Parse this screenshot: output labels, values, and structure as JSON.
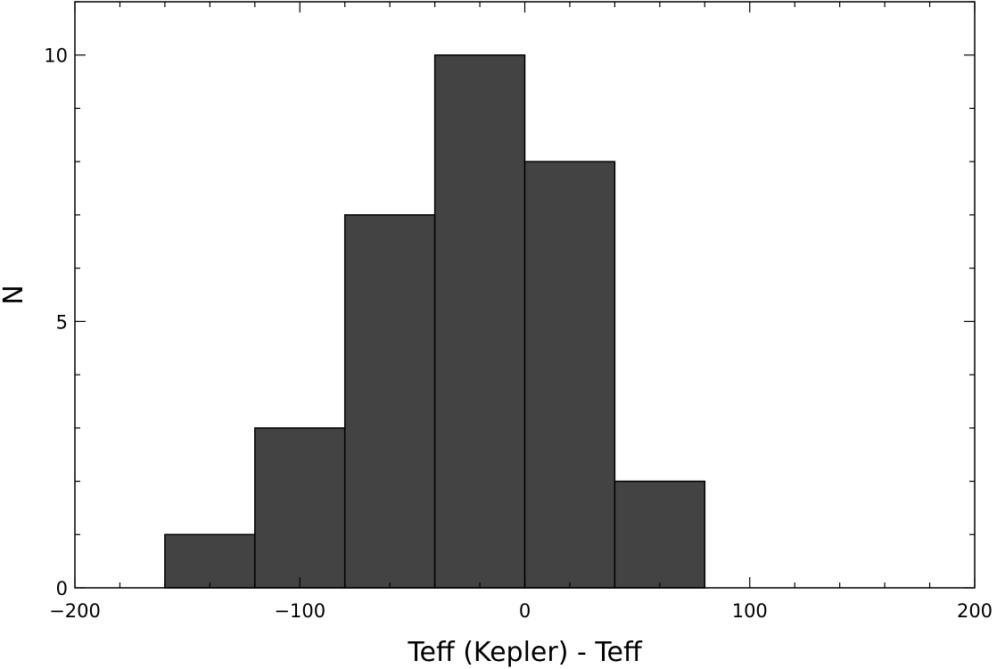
{
  "chart_data": {
    "type": "bar",
    "subtype": "histogram",
    "title": "",
    "xlabel": "Teff (Kepler) - Teff",
    "ylabel": "N",
    "xlim": [
      -200,
      200
    ],
    "ylim": [
      0,
      11
    ],
    "bin_edges": [
      -160,
      -120,
      -80,
      -40,
      0,
      40,
      80
    ],
    "values": [
      1,
      3,
      7,
      10,
      8,
      2
    ],
    "x_ticks": [
      -200,
      -100,
      0,
      100,
      200
    ],
    "x_tick_labels": [
      "−200",
      "−100",
      "0",
      "100",
      "200"
    ],
    "x_minor_step": 20,
    "y_ticks": [
      0,
      5,
      10
    ],
    "y_tick_labels": [
      "0",
      "5",
      "10"
    ],
    "y_minor_step": 1,
    "grid": false,
    "legend": "none",
    "colors": {
      "bar_fill": "#434343",
      "bar_edge": "#000000",
      "axes": "#000000"
    }
  }
}
